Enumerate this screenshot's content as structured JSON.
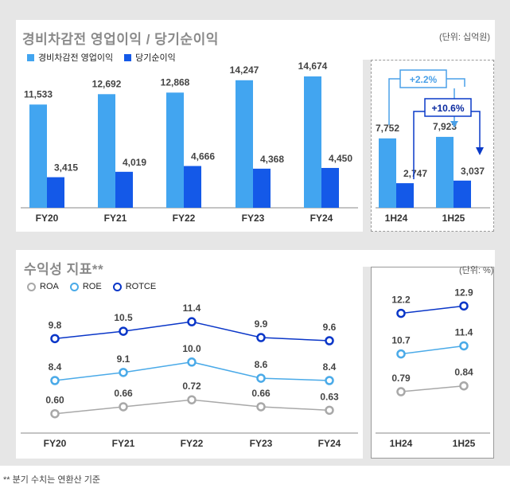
{
  "colors": {
    "op_income": "#42a5f0",
    "net_income": "#1459e8",
    "roa": "#a8a8a8",
    "roe": "#4aaae8",
    "rotce": "#0a36c8",
    "callout": "#4aa0e8"
  },
  "chart_data": [
    {
      "type": "bar",
      "title": "경비차감전 영업이익 / 당기순이익",
      "unit_label": "(단위: 십억원)",
      "categories": [
        "FY20",
        "FY21",
        "FY22",
        "FY23",
        "FY24"
      ],
      "series": [
        {
          "name": "경비차감전 영업이익",
          "values": [
            11533,
            12692,
            12868,
            14247,
            14674
          ],
          "labels": [
            "11,533",
            "12,692",
            "12,868",
            "14,247",
            "14,674"
          ]
        },
        {
          "name": "당기순이익",
          "values": [
            3415,
            4019,
            4666,
            4368,
            4450
          ],
          "labels": [
            "3,415",
            "4,019",
            "4,666",
            "4,368",
            "4,450"
          ]
        }
      ],
      "ylim": [
        0,
        14674
      ]
    },
    {
      "type": "bar",
      "title": "",
      "categories": [
        "1H24",
        "1H25"
      ],
      "series": [
        {
          "name": "경비차감전 영업이익",
          "values": [
            7752,
            7923
          ],
          "labels": [
            "7,752",
            "7,923"
          ]
        },
        {
          "name": "당기순이익",
          "values": [
            2747,
            3037
          ],
          "labels": [
            "2,747",
            "3,037"
          ]
        }
      ],
      "ylim": [
        0,
        14674
      ],
      "annotations": [
        "+2.2%",
        "+10.6%"
      ]
    },
    {
      "type": "line",
      "title": "수익성 지표**",
      "unit_label": "(단위: %)",
      "categories": [
        "FY20",
        "FY21",
        "FY22",
        "FY23",
        "FY24"
      ],
      "series": [
        {
          "name": "ROA",
          "values": [
            0.6,
            0.66,
            0.72,
            0.66,
            0.63
          ],
          "labels": [
            "0.60",
            "0.66",
            "0.72",
            "0.66",
            "0.63"
          ]
        },
        {
          "name": "ROE",
          "values": [
            8.4,
            9.1,
            10.0,
            8.6,
            8.4
          ],
          "labels": [
            "8.4",
            "9.1",
            "10.0",
            "8.6",
            "8.4"
          ]
        },
        {
          "name": "ROTCE",
          "values": [
            9.8,
            10.5,
            11.4,
            9.9,
            9.6
          ],
          "labels": [
            "9.8",
            "10.5",
            "11.4",
            "9.9",
            "9.6"
          ]
        }
      ]
    },
    {
      "type": "line",
      "title": "",
      "categories": [
        "1H24",
        "1H25"
      ],
      "series": [
        {
          "name": "ROA",
          "values": [
            0.79,
            0.84
          ],
          "labels": [
            "0.79",
            "0.84"
          ]
        },
        {
          "name": "ROE",
          "values": [
            10.7,
            11.4
          ],
          "labels": [
            "10.7",
            "11.4"
          ]
        },
        {
          "name": "ROTCE",
          "values": [
            12.2,
            12.9
          ],
          "labels": [
            "12.2",
            "12.9"
          ]
        }
      ]
    }
  ],
  "footnote": "** 분기 수치는 연환산 기준"
}
